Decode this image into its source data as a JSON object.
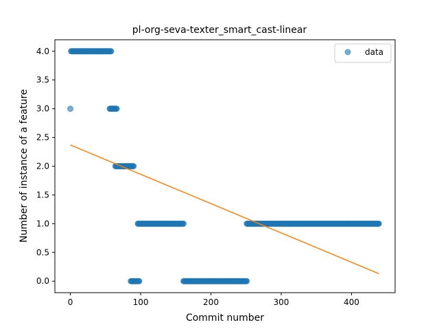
{
  "chart_data": {
    "type": "scatter",
    "title": "pl-org-seva-texter_smart_cast-linear",
    "xlabel": "Commit number",
    "ylabel": "Number of instance of a feature",
    "xlim": [
      -22,
      462
    ],
    "ylim": [
      -0.2,
      4.2
    ],
    "xticks": [
      0,
      100,
      200,
      300,
      400
    ],
    "yticks": [
      0.0,
      0.5,
      1.0,
      1.5,
      2.0,
      2.5,
      3.0,
      3.5,
      4.0
    ],
    "xtick_labels": [
      "0",
      "100",
      "200",
      "300",
      "400"
    ],
    "ytick_labels": [
      "0.0",
      "0.5",
      "1.0",
      "1.5",
      "2.0",
      "2.5",
      "3.0",
      "3.5",
      "4.0"
    ],
    "legend": {
      "placement": "top-right",
      "entries": [
        "data"
      ]
    },
    "colors": {
      "data": "#1f77b4",
      "fit": "#ff7f0e"
    },
    "series": [
      {
        "name": "data",
        "kind": "scatter",
        "segments": [
          {
            "x_start": 0,
            "x_end": 0,
            "y": 3
          },
          {
            "x_start": 1,
            "x_end": 58,
            "y": 4
          },
          {
            "x_start": 56,
            "x_end": 66,
            "y": 3
          },
          {
            "x_start": 64,
            "x_end": 90,
            "y": 2
          },
          {
            "x_start": 86,
            "x_end": 98,
            "y": 0
          },
          {
            "x_start": 96,
            "x_end": 161,
            "y": 1
          },
          {
            "x_start": 161,
            "x_end": 251,
            "y": 0
          },
          {
            "x_start": 251,
            "x_end": 439,
            "y": 1
          }
        ]
      },
      {
        "name": "",
        "kind": "line",
        "x": [
          0,
          439
        ],
        "y": [
          2.37,
          0.13
        ]
      }
    ]
  }
}
